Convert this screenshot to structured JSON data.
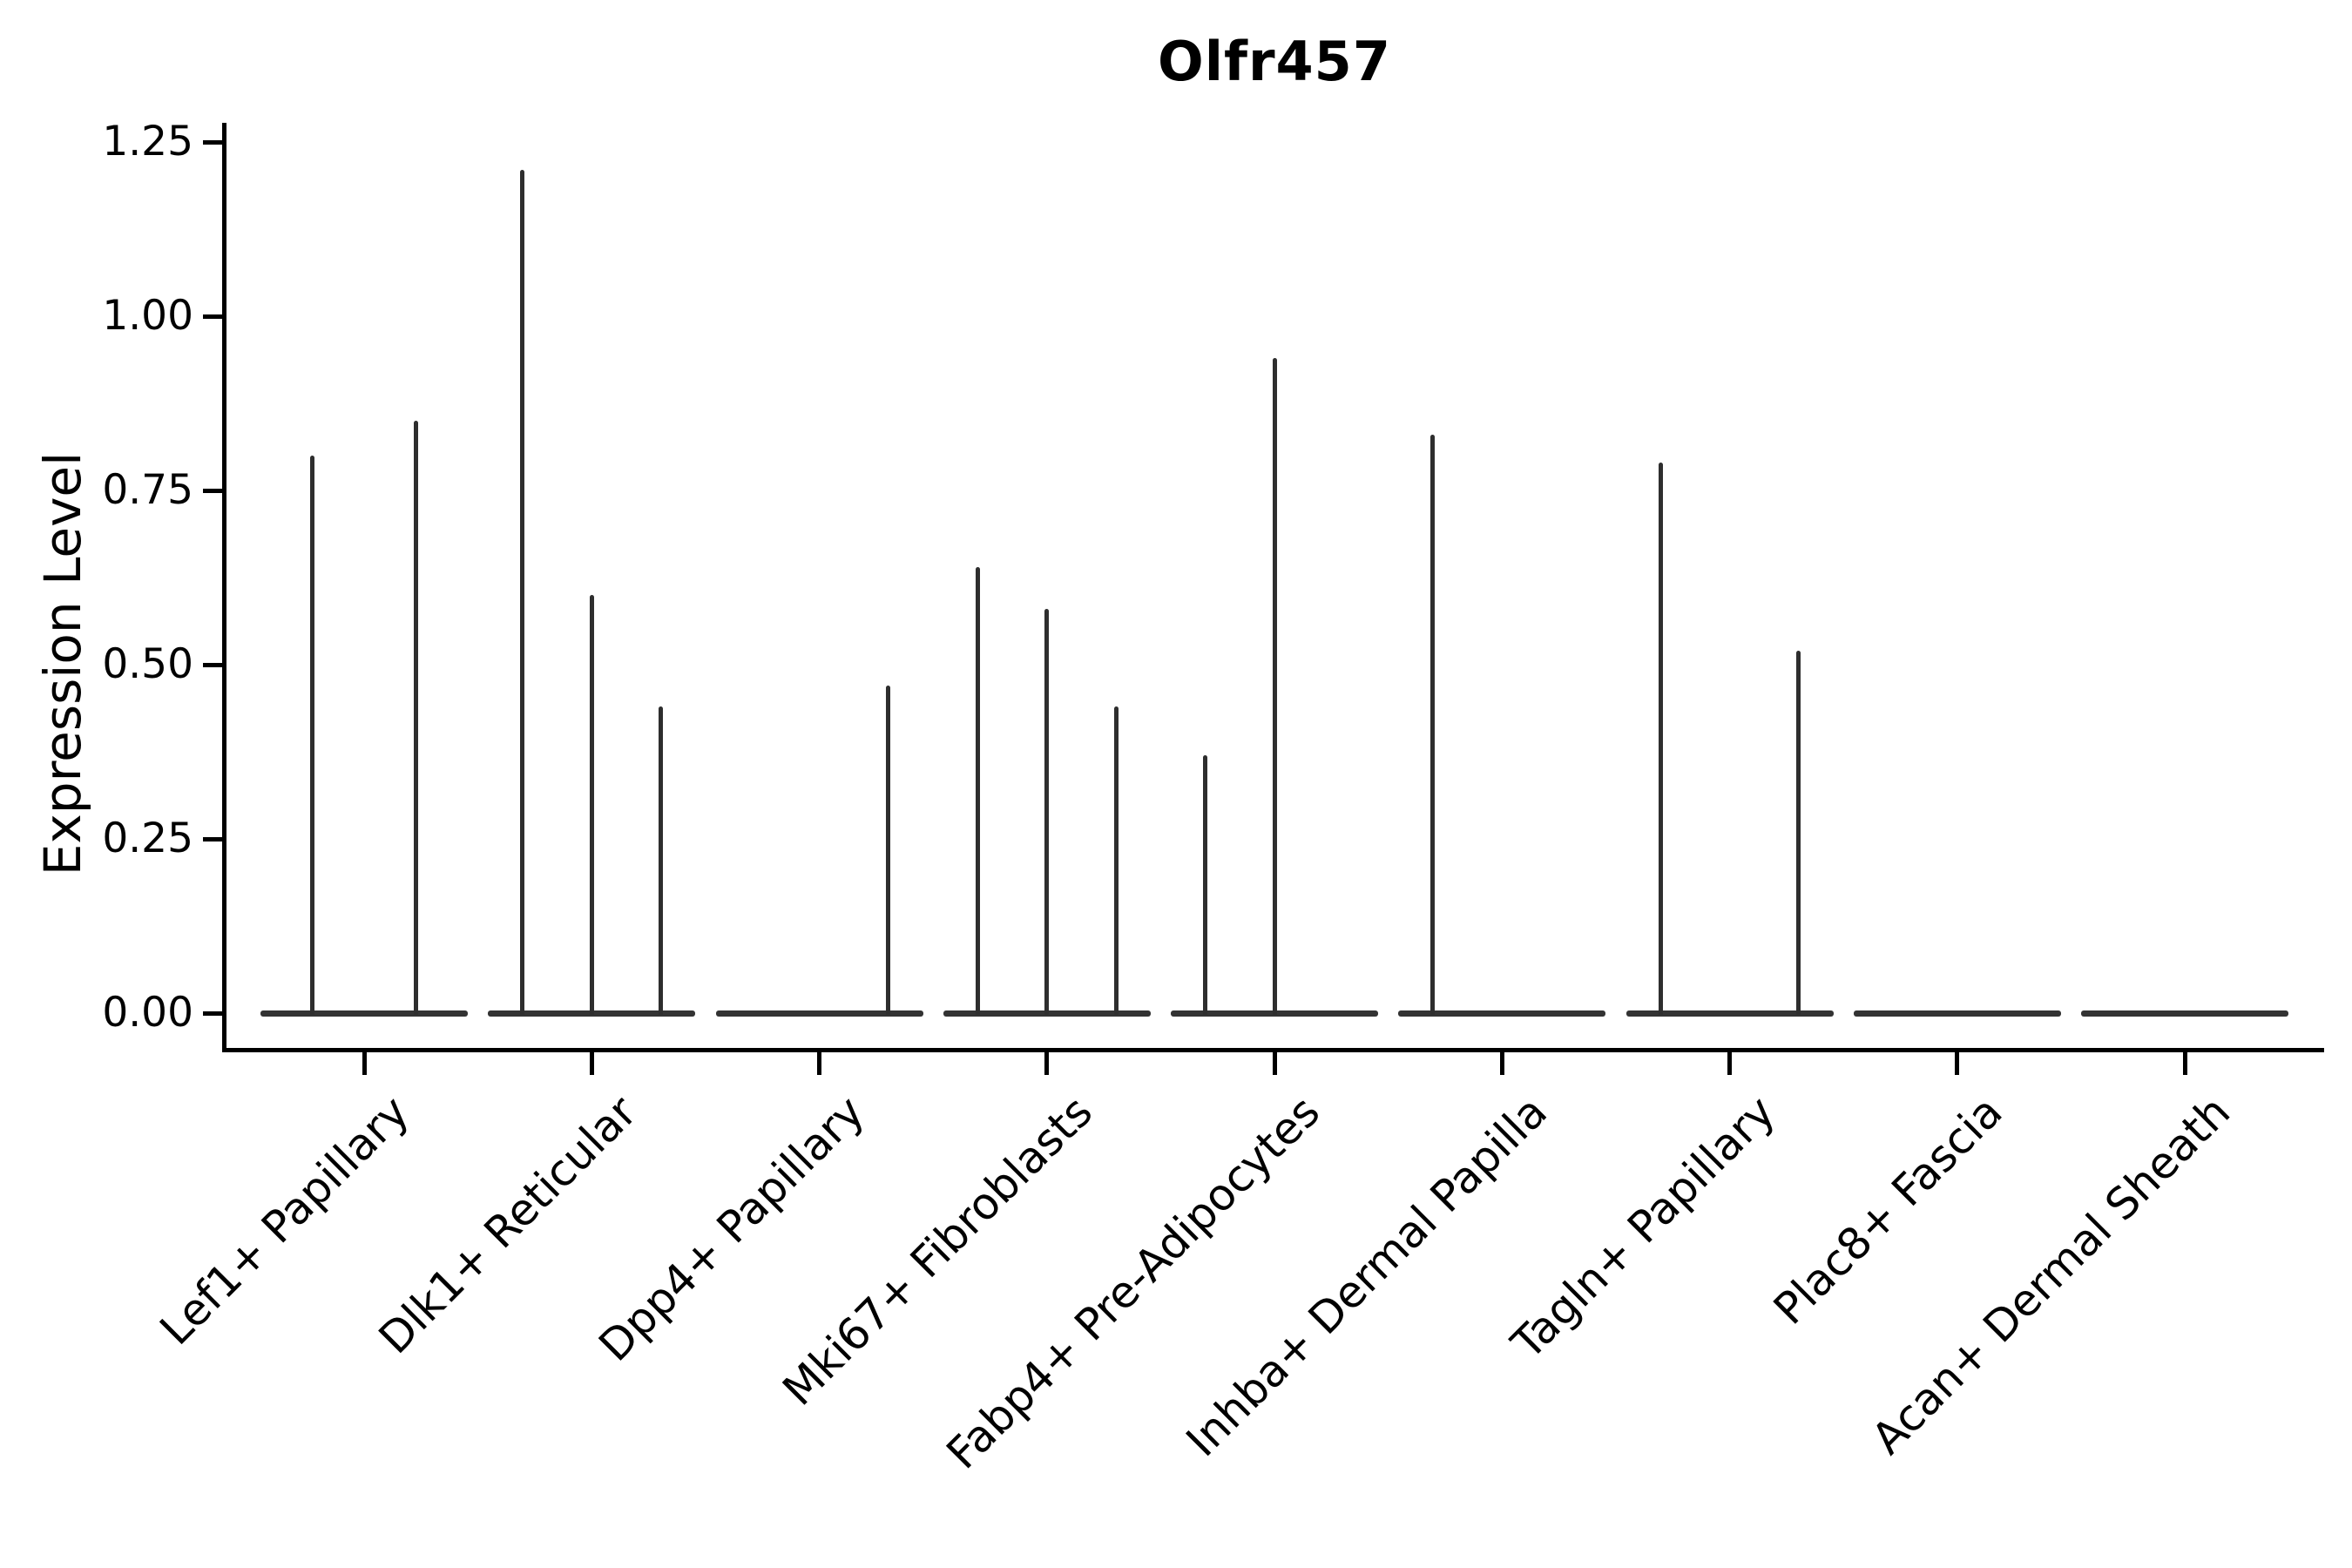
{
  "chart_data": {
    "type": "violin",
    "title": "Olfr457",
    "ylabel": "Expression Level",
    "xlabel": "",
    "ylim": [
      0,
      1.25
    ],
    "yticks": [
      "0.00",
      "0.25",
      "0.50",
      "0.75",
      "1.00",
      "1.25"
    ],
    "grid": false,
    "legend": "none",
    "categories": [
      "Lef1+ Papillary",
      "Dlk1+ Reticular",
      "Dpp4+ Papillary",
      "Mki67+ Fibroblasts",
      "Fabp4+ Pre-Adipocytes",
      "Inhba+ Dermal Papilla",
      "Tagln+ Papillary",
      "Plac8+ Fascia",
      "Acan+ Dermal Sheath"
    ],
    "violins": [
      {
        "category": "Lef1+ Papillary",
        "sub_violins": 2,
        "spikes": [
          {
            "slot": 1,
            "peak": 0.8
          },
          {
            "slot": 2,
            "peak": 0.85
          }
        ]
      },
      {
        "category": "Dlk1+ Reticular",
        "sub_violins": 3,
        "spikes": [
          {
            "slot": 1,
            "peak": 1.21
          },
          {
            "slot": 2,
            "peak": 0.6
          },
          {
            "slot": 3,
            "peak": 0.44
          }
        ]
      },
      {
        "category": "Dpp4+ Papillary",
        "sub_violins": 3,
        "spikes": [
          {
            "slot": 3,
            "peak": 0.47
          }
        ]
      },
      {
        "category": "Mki67+ Fibroblasts",
        "sub_violins": 3,
        "spikes": [
          {
            "slot": 1,
            "peak": 0.64
          },
          {
            "slot": 2,
            "peak": 0.58
          },
          {
            "slot": 3,
            "peak": 0.44
          }
        ]
      },
      {
        "category": "Fabp4+ Pre-Adipocytes",
        "sub_violins": 3,
        "spikes": [
          {
            "slot": 1,
            "peak": 0.37
          },
          {
            "slot": 2,
            "peak": 0.94
          }
        ]
      },
      {
        "category": "Inhba+ Dermal Papilla",
        "sub_violins": 3,
        "spikes": [
          {
            "slot": 1,
            "peak": 0.83
          }
        ]
      },
      {
        "category": "Tagln+ Papillary",
        "sub_violins": 3,
        "spikes": [
          {
            "slot": 1,
            "peak": 0.79
          },
          {
            "slot": 3,
            "peak": 0.52
          }
        ]
      },
      {
        "category": "Plac8+ Fascia",
        "sub_violins": 3,
        "spikes": []
      },
      {
        "category": "Acan+ Dermal Sheath",
        "sub_violins": 3,
        "spikes": []
      }
    ],
    "colors": {
      "spike": "#2e2e2e",
      "baseline": "#333333",
      "axis": "#000000",
      "text": "#000000",
      "background": "#ffffff"
    }
  }
}
